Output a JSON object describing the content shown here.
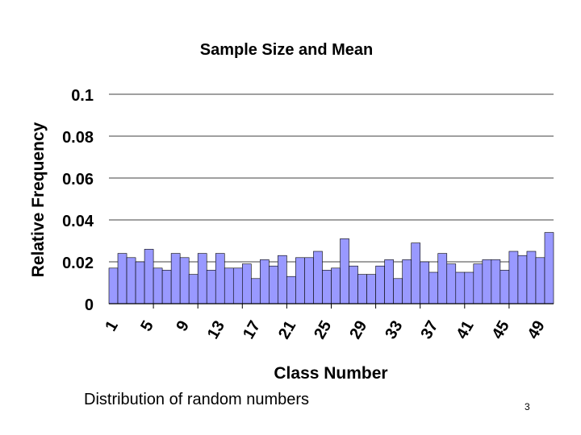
{
  "chart_data": {
    "type": "bar",
    "title": "Sample Size and Mean",
    "xlabel": "Class Number",
    "ylabel": "Relative Frequency",
    "ylim": [
      0,
      0.1
    ],
    "yticks": [
      "0",
      "0.02",
      "0.04",
      "0.06",
      "0.08",
      "0.1"
    ],
    "grid": "horizontal",
    "legend": "none",
    "x_tick_labels": [
      "1",
      "5",
      "9",
      "13",
      "17",
      "21",
      "25",
      "29",
      "33",
      "37",
      "41",
      "45",
      "49"
    ],
    "categories": [
      1,
      2,
      3,
      4,
      5,
      6,
      7,
      8,
      9,
      10,
      11,
      12,
      13,
      14,
      15,
      16,
      17,
      18,
      19,
      20,
      21,
      22,
      23,
      24,
      25,
      26,
      27,
      28,
      29,
      30,
      31,
      32,
      33,
      34,
      35,
      36,
      37,
      38,
      39,
      40,
      41,
      42,
      43,
      44,
      45,
      46,
      47,
      48,
      49,
      50
    ],
    "values": [
      0.017,
      0.024,
      0.022,
      0.02,
      0.026,
      0.017,
      0.016,
      0.024,
      0.022,
      0.014,
      0.024,
      0.016,
      0.024,
      0.017,
      0.017,
      0.019,
      0.012,
      0.021,
      0.018,
      0.023,
      0.013,
      0.022,
      0.022,
      0.025,
      0.016,
      0.017,
      0.031,
      0.018,
      0.014,
      0.014,
      0.018,
      0.021,
      0.012,
      0.021,
      0.029,
      0.02,
      0.015,
      0.024,
      0.019,
      0.015,
      0.015,
      0.019,
      0.021,
      0.021,
      0.016,
      0.025,
      0.023,
      0.025,
      0.022,
      0.034
    ],
    "colors": {
      "bar_fill": "#9999ff",
      "bar_stroke": "#000000",
      "grid": "#000000"
    }
  },
  "caption": "Distribution of random numbers",
  "page_number": "3"
}
